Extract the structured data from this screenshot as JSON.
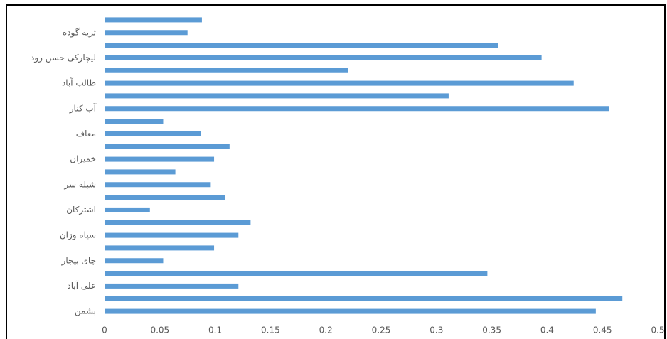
{
  "chart_data": {
    "type": "barh",
    "categories": [
      null,
      "ثریه گوده",
      null,
      "لیچارکی حسن رود",
      null,
      "طالب آباد",
      null,
      "آب کنار",
      null,
      "معاف",
      null,
      "خمیران",
      null,
      "شبله سر",
      null,
      "اشترکان",
      null,
      "سیاه وزان",
      null,
      "چای بیجار",
      null,
      "علی آباد",
      null,
      "بشمن"
    ],
    "values": [
      0.088,
      0.075,
      0.356,
      0.395,
      0.22,
      0.424,
      0.311,
      0.456,
      0.053,
      0.087,
      0.113,
      0.099,
      0.064,
      0.096,
      0.109,
      0.041,
      0.132,
      0.121,
      0.099,
      0.053,
      0.346,
      0.121,
      0.468,
      0.444
    ],
    "color": "#5b9bd5",
    "xlim": [
      0,
      0.5
    ],
    "xticks": [
      0,
      0.05,
      0.1,
      0.15,
      0.2,
      0.25,
      0.3,
      0.35,
      0.4,
      0.45,
      0.5
    ],
    "grid": false
  }
}
